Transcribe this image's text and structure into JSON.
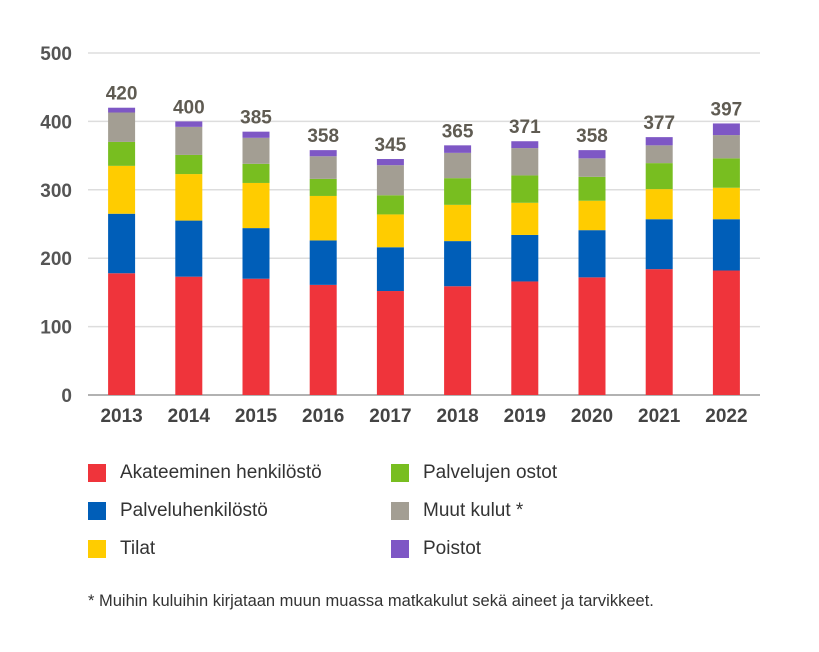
{
  "chart_data": {
    "type": "bar",
    "stacked": true,
    "categories": [
      "2013",
      "2014",
      "2015",
      "2016",
      "2017",
      "2018",
      "2019",
      "2020",
      "2021",
      "2022"
    ],
    "totals": [
      420,
      400,
      385,
      358,
      345,
      365,
      371,
      358,
      377,
      397
    ],
    "series": [
      {
        "name": "Akateeminen henkilöstö",
        "color": "#ef343b",
        "values": [
          178,
          173,
          170,
          161,
          152,
          159,
          166,
          172,
          184,
          182
        ]
      },
      {
        "name": "Palveluhenkilöstö",
        "color": "#005eb8",
        "values": [
          87,
          82,
          74,
          65,
          64,
          66,
          68,
          69,
          73,
          75
        ]
      },
      {
        "name": "Tilat",
        "color": "#ffcc00",
        "values": [
          70,
          68,
          66,
          65,
          48,
          53,
          47,
          43,
          44,
          46
        ]
      },
      {
        "name": "Palvelujen ostot",
        "color": "#78be20",
        "values": [
          35,
          28,
          28,
          25,
          28,
          39,
          40,
          35,
          38,
          43
        ]
      },
      {
        "name": "Muut kulut *",
        "color": "#a39e93",
        "values": [
          43,
          41,
          38,
          33,
          44,
          37,
          40,
          27,
          26,
          34
        ]
      },
      {
        "name": "Poistot",
        "color": "#7e57c5",
        "values": [
          7,
          8,
          9,
          9,
          9,
          11,
          10,
          12,
          12,
          17
        ]
      }
    ],
    "yticks": [
      0,
      100,
      200,
      300,
      400,
      500
    ],
    "ylim": [
      0,
      500
    ],
    "grid": true,
    "legend_position": "bottom",
    "footnote": "* Muihin kuluihin kirjataan muun muassa matkakulut sekä aineet ja tarvikkeet."
  }
}
